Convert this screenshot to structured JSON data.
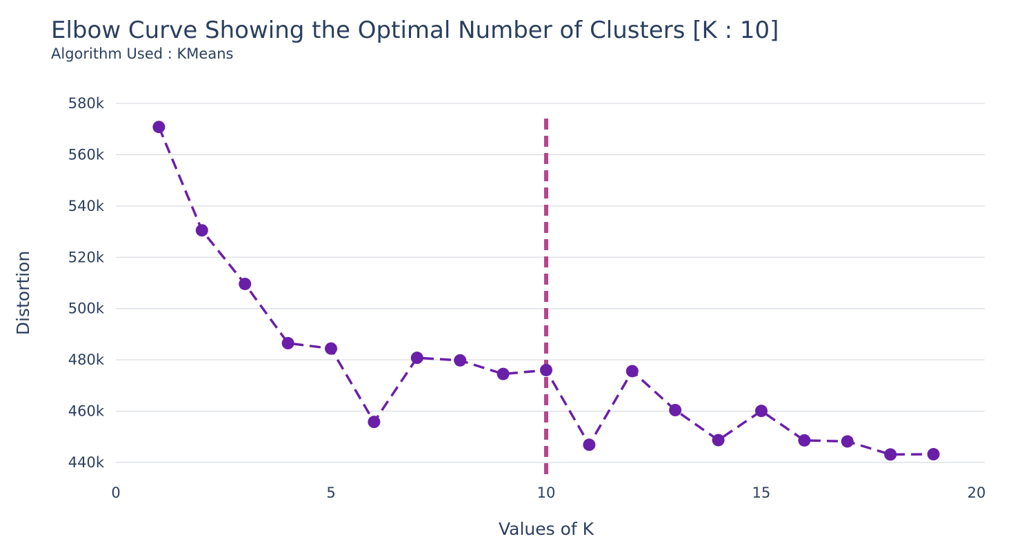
{
  "chart_data": {
    "type": "line",
    "title": "Elbow Curve Showing the Optimal Number of Clusters [K : 10]",
    "subtitle": "Algorithm Used : KMeans",
    "xlabel": "Values of K",
    "ylabel": "Distortion",
    "xlim": [
      0,
      20
    ],
    "ylim": [
      433000,
      580000
    ],
    "x_ticks": [
      0,
      5,
      10,
      15,
      20
    ],
    "x_tick_labels": [
      "0",
      "5",
      "10",
      "15",
      "20"
    ],
    "y_ticks": [
      440000,
      460000,
      480000,
      500000,
      520000,
      540000,
      560000,
      580000
    ],
    "y_tick_labels": [
      "440k",
      "460k",
      "480k",
      "500k",
      "520k",
      "540k",
      "560k",
      "580k"
    ],
    "grid": true,
    "series": [
      {
        "x": [
          1,
          2,
          3,
          4,
          5,
          6,
          7,
          8,
          9,
          10,
          11,
          12,
          13,
          14,
          15,
          16,
          17,
          18,
          19
        ],
        "values": [
          570800,
          530500,
          509600,
          486500,
          484400,
          455800,
          480800,
          479800,
          474500,
          476000,
          446900,
          475600,
          460400,
          448700,
          460100,
          448600,
          448200,
          443100,
          443200
        ],
        "color": "#6a1fa8",
        "line_style": "dash",
        "marker": "circle"
      }
    ],
    "vline": {
      "x": 10,
      "color": "#b5468c",
      "line_style": "dash"
    }
  }
}
